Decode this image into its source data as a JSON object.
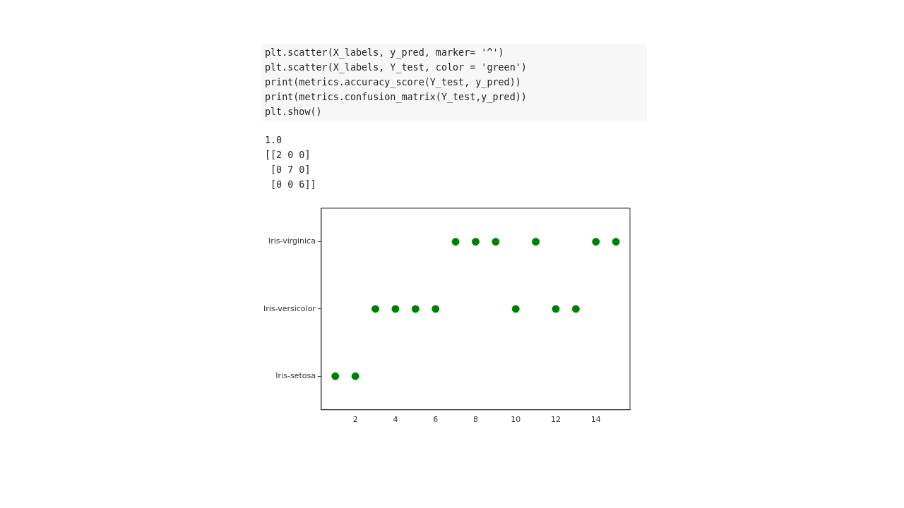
{
  "chart_data": {
    "type": "scatter",
    "annotations": [
      "plt.scatter(X_labels, y_pred, marker= '^')\nplt.scatter(X_labels, Y_test, color = 'green')\nprint(metrics.accuracy_score(Y_test, y_pred))\nprint(metrics.confusion_matrix(Y_test,y_pred))\nplt.show()",
      "1.0\n[[2 0 0]\n [0 7 0]\n [0 0 6]]"
    ],
    "orientation": "horizontal",
    "categories": [
      "Iris-virginica",
      "Iris-versicolor",
      "Iris-setosa"
    ],
    "series": [
      {
        "color": "#008000",
        "values": [
          7,
          3,
          1
        ]
      },
      {
        "color": "#008000",
        "values": [
          8,
          4,
          2
        ]
      },
      {
        "color": "#008000",
        "values": [
          9,
          5,
          null
        ]
      },
      {
        "color": "#008000",
        "values": [
          11,
          6,
          null
        ]
      },
      {
        "color": "#008000",
        "values": [
          14,
          10,
          null
        ]
      },
      {
        "color": "#008000",
        "values": [
          15,
          12,
          null
        ]
      },
      {
        "color": "#008000",
        "values": [
          null,
          13,
          null
        ]
      }
    ],
    "xlim": [
      0.3,
      15.7
    ],
    "xticks": [
      2,
      4,
      6,
      8,
      10,
      12,
      14
    ],
    "marker": "circle",
    "grid": false
  }
}
